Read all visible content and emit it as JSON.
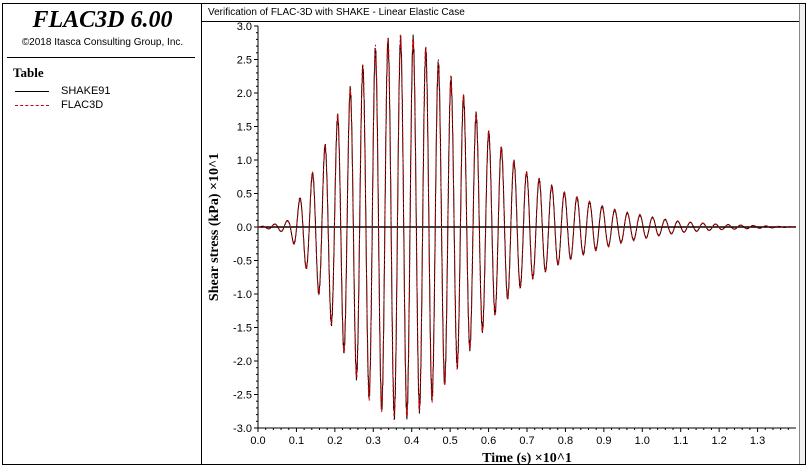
{
  "app": {
    "title": "FLAC3D 6.00",
    "copyright": "©2018 Itasca Consulting Group, Inc."
  },
  "legend": {
    "title": "Table",
    "items": [
      {
        "label": "SHAKE91",
        "color": "#000000",
        "style": "solid"
      },
      {
        "label": "FLAC3D",
        "color": "#cc0000",
        "style": "dashed"
      }
    ]
  },
  "chart_data": {
    "type": "line",
    "title": "Verification of FLAC-3D with SHAKE - Linear Elastic Case",
    "xlabel": "Time (s) ×10^1",
    "ylabel": "Shear stress (kPa) ×10^1",
    "xlim": [
      0,
      1.4
    ],
    "ylim": [
      -3.0,
      3.0
    ],
    "xticks": [
      "0.0",
      "0.1",
      "0.2",
      "0.3",
      "0.4",
      "0.5",
      "0.6",
      "0.7",
      "0.8",
      "0.9",
      "1.0",
      "1.1",
      "1.2",
      "1.3"
    ],
    "yticks": [
      "3.0",
      "2.5",
      "2.0",
      "1.5",
      "1.0",
      "0.5",
      "0.0",
      "-0.5",
      "-1.0",
      "-1.5",
      "-2.0",
      "-2.5",
      "-3.0"
    ],
    "grid": false,
    "signal": {
      "description_points": "oscillating shear stress; envelope peaks near t=0.36",
      "frequency_per_unit_x": 30.5,
      "envelope": [
        [
          0.0,
          0.0
        ],
        [
          0.05,
          0.05
        ],
        [
          0.08,
          0.1
        ],
        [
          0.12,
          0.55
        ],
        [
          0.16,
          1.0
        ],
        [
          0.2,
          1.55
        ],
        [
          0.25,
          2.15
        ],
        [
          0.3,
          2.6
        ],
        [
          0.35,
          2.78
        ],
        [
          0.4,
          2.78
        ],
        [
          0.45,
          2.55
        ],
        [
          0.5,
          2.2
        ],
        [
          0.55,
          1.8
        ],
        [
          0.6,
          1.4
        ],
        [
          0.65,
          1.05
        ],
        [
          0.7,
          0.8
        ],
        [
          0.75,
          0.65
        ],
        [
          0.8,
          0.5
        ],
        [
          0.85,
          0.4
        ],
        [
          0.9,
          0.3
        ],
        [
          0.95,
          0.22
        ],
        [
          1.0,
          0.17
        ],
        [
          1.05,
          0.12
        ],
        [
          1.1,
          0.08
        ],
        [
          1.15,
          0.06
        ],
        [
          1.2,
          0.04
        ],
        [
          1.3,
          0.02
        ],
        [
          1.4,
          0.0
        ]
      ]
    },
    "series": [
      {
        "name": "SHAKE91",
        "color": "#000000",
        "dash": "none"
      },
      {
        "name": "FLAC3D",
        "color": "#cc0000",
        "dash": "3,2"
      }
    ]
  }
}
